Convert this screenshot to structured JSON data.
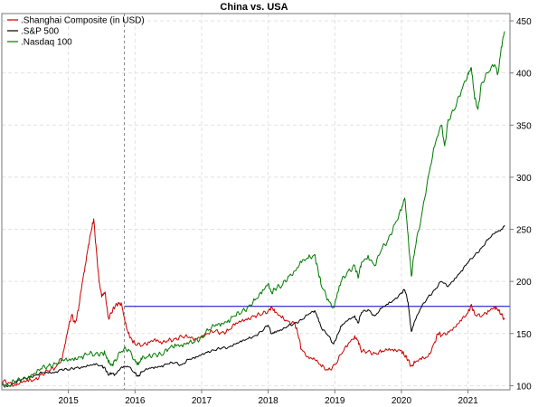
{
  "chart_data": {
    "type": "line",
    "title": "China vs. USA",
    "xlabel": "",
    "ylabel": "",
    "ylim": [
      96,
      457
    ],
    "xlim": [
      2014.0,
      2021.63
    ],
    "y_axis_position": "right",
    "grid": true,
    "legend_position": "top-left",
    "y_ticks": [
      100,
      150,
      200,
      250,
      300,
      350,
      400,
      450
    ],
    "x_ticks": [
      {
        "label": "2015",
        "x": 2015.0
      },
      {
        "label": "2016",
        "x": 2016.0
      },
      {
        "label": "2017",
        "x": 2017.0
      },
      {
        "label": "2018",
        "x": 2018.0
      },
      {
        "label": "2019",
        "x": 2019.0
      },
      {
        "label": "2020",
        "x": 2020.0
      },
      {
        "label": "2021",
        "x": 2021.0
      }
    ],
    "reference_lines": {
      "horizontal_value": 176,
      "vertical_x": 2015.84,
      "horizontal_color": "#0000cc",
      "vertical_color": "#888888"
    },
    "series": [
      {
        "name": ".Shanghai Composite (in USD)",
        "color": "#cc0000",
        "points": [
          [
            2014.0,
            104
          ],
          [
            2014.1,
            103
          ],
          [
            2014.2,
            101
          ],
          [
            2014.3,
            103
          ],
          [
            2014.4,
            104
          ],
          [
            2014.5,
            106
          ],
          [
            2014.6,
            111
          ],
          [
            2014.7,
            114
          ],
          [
            2014.8,
            117
          ],
          [
            2014.9,
            126
          ],
          [
            2014.95,
            140
          ],
          [
            2015.0,
            155
          ],
          [
            2015.05,
            168
          ],
          [
            2015.1,
            160
          ],
          [
            2015.15,
            172
          ],
          [
            2015.2,
            195
          ],
          [
            2015.25,
            215
          ],
          [
            2015.3,
            235
          ],
          [
            2015.35,
            250
          ],
          [
            2015.38,
            260
          ],
          [
            2015.42,
            230
          ],
          [
            2015.46,
            200
          ],
          [
            2015.5,
            185
          ],
          [
            2015.55,
            190
          ],
          [
            2015.6,
            165
          ],
          [
            2015.65,
            170
          ],
          [
            2015.7,
            176
          ],
          [
            2015.75,
            180
          ],
          [
            2015.8,
            178
          ],
          [
            2015.85,
            160
          ],
          [
            2015.9,
            150
          ],
          [
            2015.95,
            145
          ],
          [
            2016.0,
            140
          ],
          [
            2016.1,
            138
          ],
          [
            2016.2,
            142
          ],
          [
            2016.3,
            145
          ],
          [
            2016.4,
            140
          ],
          [
            2016.5,
            143
          ],
          [
            2016.6,
            145
          ],
          [
            2016.7,
            147
          ],
          [
            2016.8,
            146
          ],
          [
            2016.9,
            145
          ],
          [
            2017.0,
            148
          ],
          [
            2017.1,
            150
          ],
          [
            2017.2,
            152
          ],
          [
            2017.3,
            151
          ],
          [
            2017.4,
            153
          ],
          [
            2017.5,
            158
          ],
          [
            2017.6,
            162
          ],
          [
            2017.7,
            165
          ],
          [
            2017.8,
            167
          ],
          [
            2017.9,
            168
          ],
          [
            2018.0,
            172
          ],
          [
            2018.05,
            176
          ],
          [
            2018.1,
            170
          ],
          [
            2018.2,
            165
          ],
          [
            2018.3,
            162
          ],
          [
            2018.4,
            160
          ],
          [
            2018.45,
            148
          ],
          [
            2018.5,
            135
          ],
          [
            2018.6,
            128
          ],
          [
            2018.7,
            125
          ],
          [
            2018.8,
            118
          ],
          [
            2018.9,
            115
          ],
          [
            2019.0,
            120
          ],
          [
            2019.1,
            130
          ],
          [
            2019.2,
            140
          ],
          [
            2019.3,
            148
          ],
          [
            2019.35,
            143
          ],
          [
            2019.4,
            132
          ],
          [
            2019.5,
            133
          ],
          [
            2019.6,
            131
          ],
          [
            2019.7,
            132
          ],
          [
            2019.8,
            134
          ],
          [
            2019.9,
            135
          ],
          [
            2020.0,
            134
          ],
          [
            2020.05,
            128
          ],
          [
            2020.1,
            125
          ],
          [
            2020.15,
            119
          ],
          [
            2020.2,
            122
          ],
          [
            2020.3,
            125
          ],
          [
            2020.4,
            128
          ],
          [
            2020.5,
            142
          ],
          [
            2020.55,
            150
          ],
          [
            2020.6,
            148
          ],
          [
            2020.7,
            152
          ],
          [
            2020.8,
            156
          ],
          [
            2020.9,
            162
          ],
          [
            2021.0,
            170
          ],
          [
            2021.05,
            178
          ],
          [
            2021.1,
            168
          ],
          [
            2021.2,
            166
          ],
          [
            2021.3,
            172
          ],
          [
            2021.4,
            176
          ],
          [
            2021.45,
            172
          ],
          [
            2021.5,
            168
          ],
          [
            2021.55,
            164
          ]
        ]
      },
      {
        "name": ".S&P 500",
        "color": "#000000",
        "points": [
          [
            2014.0,
            101
          ],
          [
            2014.1,
            100
          ],
          [
            2014.2,
            103
          ],
          [
            2014.3,
            106
          ],
          [
            2014.4,
            108
          ],
          [
            2014.5,
            110
          ],
          [
            2014.6,
            112
          ],
          [
            2014.7,
            112
          ],
          [
            2014.8,
            113
          ],
          [
            2014.9,
            116
          ],
          [
            2015.0,
            115
          ],
          [
            2015.1,
            117
          ],
          [
            2015.2,
            118
          ],
          [
            2015.3,
            119
          ],
          [
            2015.4,
            120
          ],
          [
            2015.5,
            119
          ],
          [
            2015.55,
            117
          ],
          [
            2015.6,
            110
          ],
          [
            2015.65,
            112
          ],
          [
            2015.7,
            111
          ],
          [
            2015.8,
            118
          ],
          [
            2015.9,
            118
          ],
          [
            2016.0,
            112
          ],
          [
            2016.05,
            109
          ],
          [
            2016.1,
            113
          ],
          [
            2016.2,
            116
          ],
          [
            2016.3,
            118
          ],
          [
            2016.4,
            119
          ],
          [
            2016.5,
            121
          ],
          [
            2016.6,
            122
          ],
          [
            2016.7,
            120
          ],
          [
            2016.8,
            125
          ],
          [
            2016.9,
            126
          ],
          [
            2017.0,
            130
          ],
          [
            2017.1,
            133
          ],
          [
            2017.2,
            134
          ],
          [
            2017.3,
            136
          ],
          [
            2017.4,
            137
          ],
          [
            2017.5,
            140
          ],
          [
            2017.6,
            142
          ],
          [
            2017.7,
            145
          ],
          [
            2017.8,
            148
          ],
          [
            2017.9,
            152
          ],
          [
            2018.0,
            158
          ],
          [
            2018.05,
            150
          ],
          [
            2018.1,
            152
          ],
          [
            2018.2,
            153
          ],
          [
            2018.3,
            157
          ],
          [
            2018.4,
            160
          ],
          [
            2018.5,
            163
          ],
          [
            2018.6,
            168
          ],
          [
            2018.7,
            172
          ],
          [
            2018.75,
            165
          ],
          [
            2018.8,
            155
          ],
          [
            2018.9,
            148
          ],
          [
            2018.98,
            140
          ],
          [
            2019.05,
            150
          ],
          [
            2019.1,
            157
          ],
          [
            2019.2,
            163
          ],
          [
            2019.3,
            167
          ],
          [
            2019.35,
            160
          ],
          [
            2019.4,
            170
          ],
          [
            2019.5,
            173
          ],
          [
            2019.6,
            167
          ],
          [
            2019.7,
            174
          ],
          [
            2019.8,
            178
          ],
          [
            2019.9,
            183
          ],
          [
            2020.0,
            189
          ],
          [
            2020.05,
            192
          ],
          [
            2020.1,
            180
          ],
          [
            2020.15,
            152
          ],
          [
            2020.2,
            162
          ],
          [
            2020.3,
            175
          ],
          [
            2020.4,
            185
          ],
          [
            2020.5,
            192
          ],
          [
            2020.6,
            200
          ],
          [
            2020.7,
            195
          ],
          [
            2020.8,
            203
          ],
          [
            2020.9,
            210
          ],
          [
            2021.0,
            218
          ],
          [
            2021.1,
            225
          ],
          [
            2021.2,
            232
          ],
          [
            2021.3,
            240
          ],
          [
            2021.4,
            246
          ],
          [
            2021.5,
            250
          ],
          [
            2021.55,
            254
          ]
        ]
      },
      {
        "name": ".Nasdaq 100",
        "color": "#007a00",
        "points": [
          [
            2014.0,
            102
          ],
          [
            2014.1,
            100
          ],
          [
            2014.2,
            104
          ],
          [
            2014.3,
            106
          ],
          [
            2014.4,
            109
          ],
          [
            2014.5,
            112
          ],
          [
            2014.6,
            116
          ],
          [
            2014.7,
            119
          ],
          [
            2014.8,
            121
          ],
          [
            2014.9,
            124
          ],
          [
            2015.0,
            124
          ],
          [
            2015.1,
            127
          ],
          [
            2015.2,
            128
          ],
          [
            2015.3,
            130
          ],
          [
            2015.4,
            130
          ],
          [
            2015.5,
            132
          ],
          [
            2015.55,
            130
          ],
          [
            2015.6,
            122
          ],
          [
            2015.65,
            120
          ],
          [
            2015.7,
            125
          ],
          [
            2015.8,
            133
          ],
          [
            2015.9,
            135
          ],
          [
            2016.0,
            125
          ],
          [
            2016.05,
            120
          ],
          [
            2016.1,
            125
          ],
          [
            2016.2,
            128
          ],
          [
            2016.3,
            131
          ],
          [
            2016.4,
            129
          ],
          [
            2016.5,
            135
          ],
          [
            2016.6,
            140
          ],
          [
            2016.7,
            139
          ],
          [
            2016.8,
            140
          ],
          [
            2016.9,
            142
          ],
          [
            2017.0,
            147
          ],
          [
            2017.1,
            153
          ],
          [
            2017.2,
            157
          ],
          [
            2017.3,
            160
          ],
          [
            2017.4,
            163
          ],
          [
            2017.5,
            167
          ],
          [
            2017.6,
            170
          ],
          [
            2017.7,
            176
          ],
          [
            2017.8,
            182
          ],
          [
            2017.9,
            188
          ],
          [
            2018.0,
            198
          ],
          [
            2018.05,
            190
          ],
          [
            2018.1,
            193
          ],
          [
            2018.2,
            195
          ],
          [
            2018.3,
            205
          ],
          [
            2018.4,
            210
          ],
          [
            2018.5,
            218
          ],
          [
            2018.6,
            222
          ],
          [
            2018.7,
            226
          ],
          [
            2018.75,
            210
          ],
          [
            2018.8,
            195
          ],
          [
            2018.9,
            183
          ],
          [
            2018.98,
            175
          ],
          [
            2019.05,
            190
          ],
          [
            2019.1,
            200
          ],
          [
            2019.2,
            210
          ],
          [
            2019.3,
            215
          ],
          [
            2019.35,
            203
          ],
          [
            2019.4,
            218
          ],
          [
            2019.5,
            225
          ],
          [
            2019.6,
            215
          ],
          [
            2019.7,
            230
          ],
          [
            2019.8,
            240
          ],
          [
            2019.9,
            255
          ],
          [
            2020.0,
            268
          ],
          [
            2020.05,
            280
          ],
          [
            2020.1,
            245
          ],
          [
            2020.15,
            205
          ],
          [
            2020.2,
            230
          ],
          [
            2020.3,
            262
          ],
          [
            2020.4,
            300
          ],
          [
            2020.5,
            330
          ],
          [
            2020.6,
            350
          ],
          [
            2020.65,
            330
          ],
          [
            2020.7,
            355
          ],
          [
            2020.8,
            365
          ],
          [
            2020.9,
            383
          ],
          [
            2021.0,
            400
          ],
          [
            2021.05,
            405
          ],
          [
            2021.1,
            375
          ],
          [
            2021.15,
            365
          ],
          [
            2021.2,
            390
          ],
          [
            2021.3,
            400
          ],
          [
            2021.4,
            408
          ],
          [
            2021.45,
            400
          ],
          [
            2021.5,
            425
          ],
          [
            2021.55,
            440
          ]
        ]
      }
    ]
  }
}
